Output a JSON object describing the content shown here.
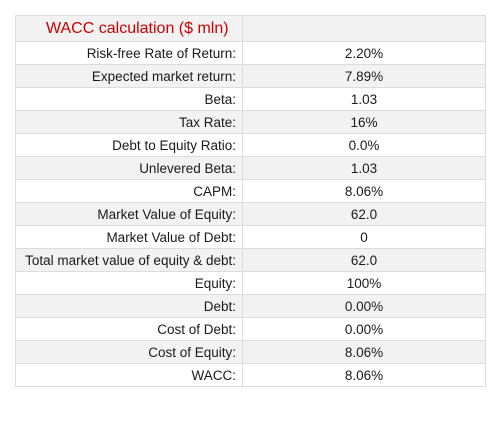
{
  "table": {
    "title": "WACC calculation ($ mln)",
    "rows": [
      {
        "label": "Risk-free Rate of Return:",
        "value": "2.20%"
      },
      {
        "label": "Expected market return:",
        "value": "7.89%"
      },
      {
        "label": "Beta:",
        "value": "1.03"
      },
      {
        "label": "Tax Rate:",
        "value": "16%"
      },
      {
        "label": "Debt to Equity Ratio:",
        "value": "0.0%"
      },
      {
        "label": "Unlevered Beta:",
        "value": "1.03"
      },
      {
        "label": "CAPM:",
        "value": "8.06%"
      },
      {
        "label": "Market Value of Equity:",
        "value": "62.0"
      },
      {
        "label": "Market Value of Debt:",
        "value": "0"
      },
      {
        "label": "Total market value of equity & debt:",
        "value": "62.0"
      },
      {
        "label": "Equity:",
        "value": "100%"
      },
      {
        "label": "Debt:",
        "value": "0.00%"
      },
      {
        "label": "Cost of Debt:",
        "value": "0.00%"
      },
      {
        "label": "Cost of Equity:",
        "value": "8.06%"
      },
      {
        "label": "WACC:",
        "value": "8.06%"
      }
    ]
  },
  "colors": {
    "title": "#cc0000",
    "shaded_row": "#f2f2f2",
    "grid_line": "#dcdcdc",
    "separator_line": "#1a1a1a"
  }
}
